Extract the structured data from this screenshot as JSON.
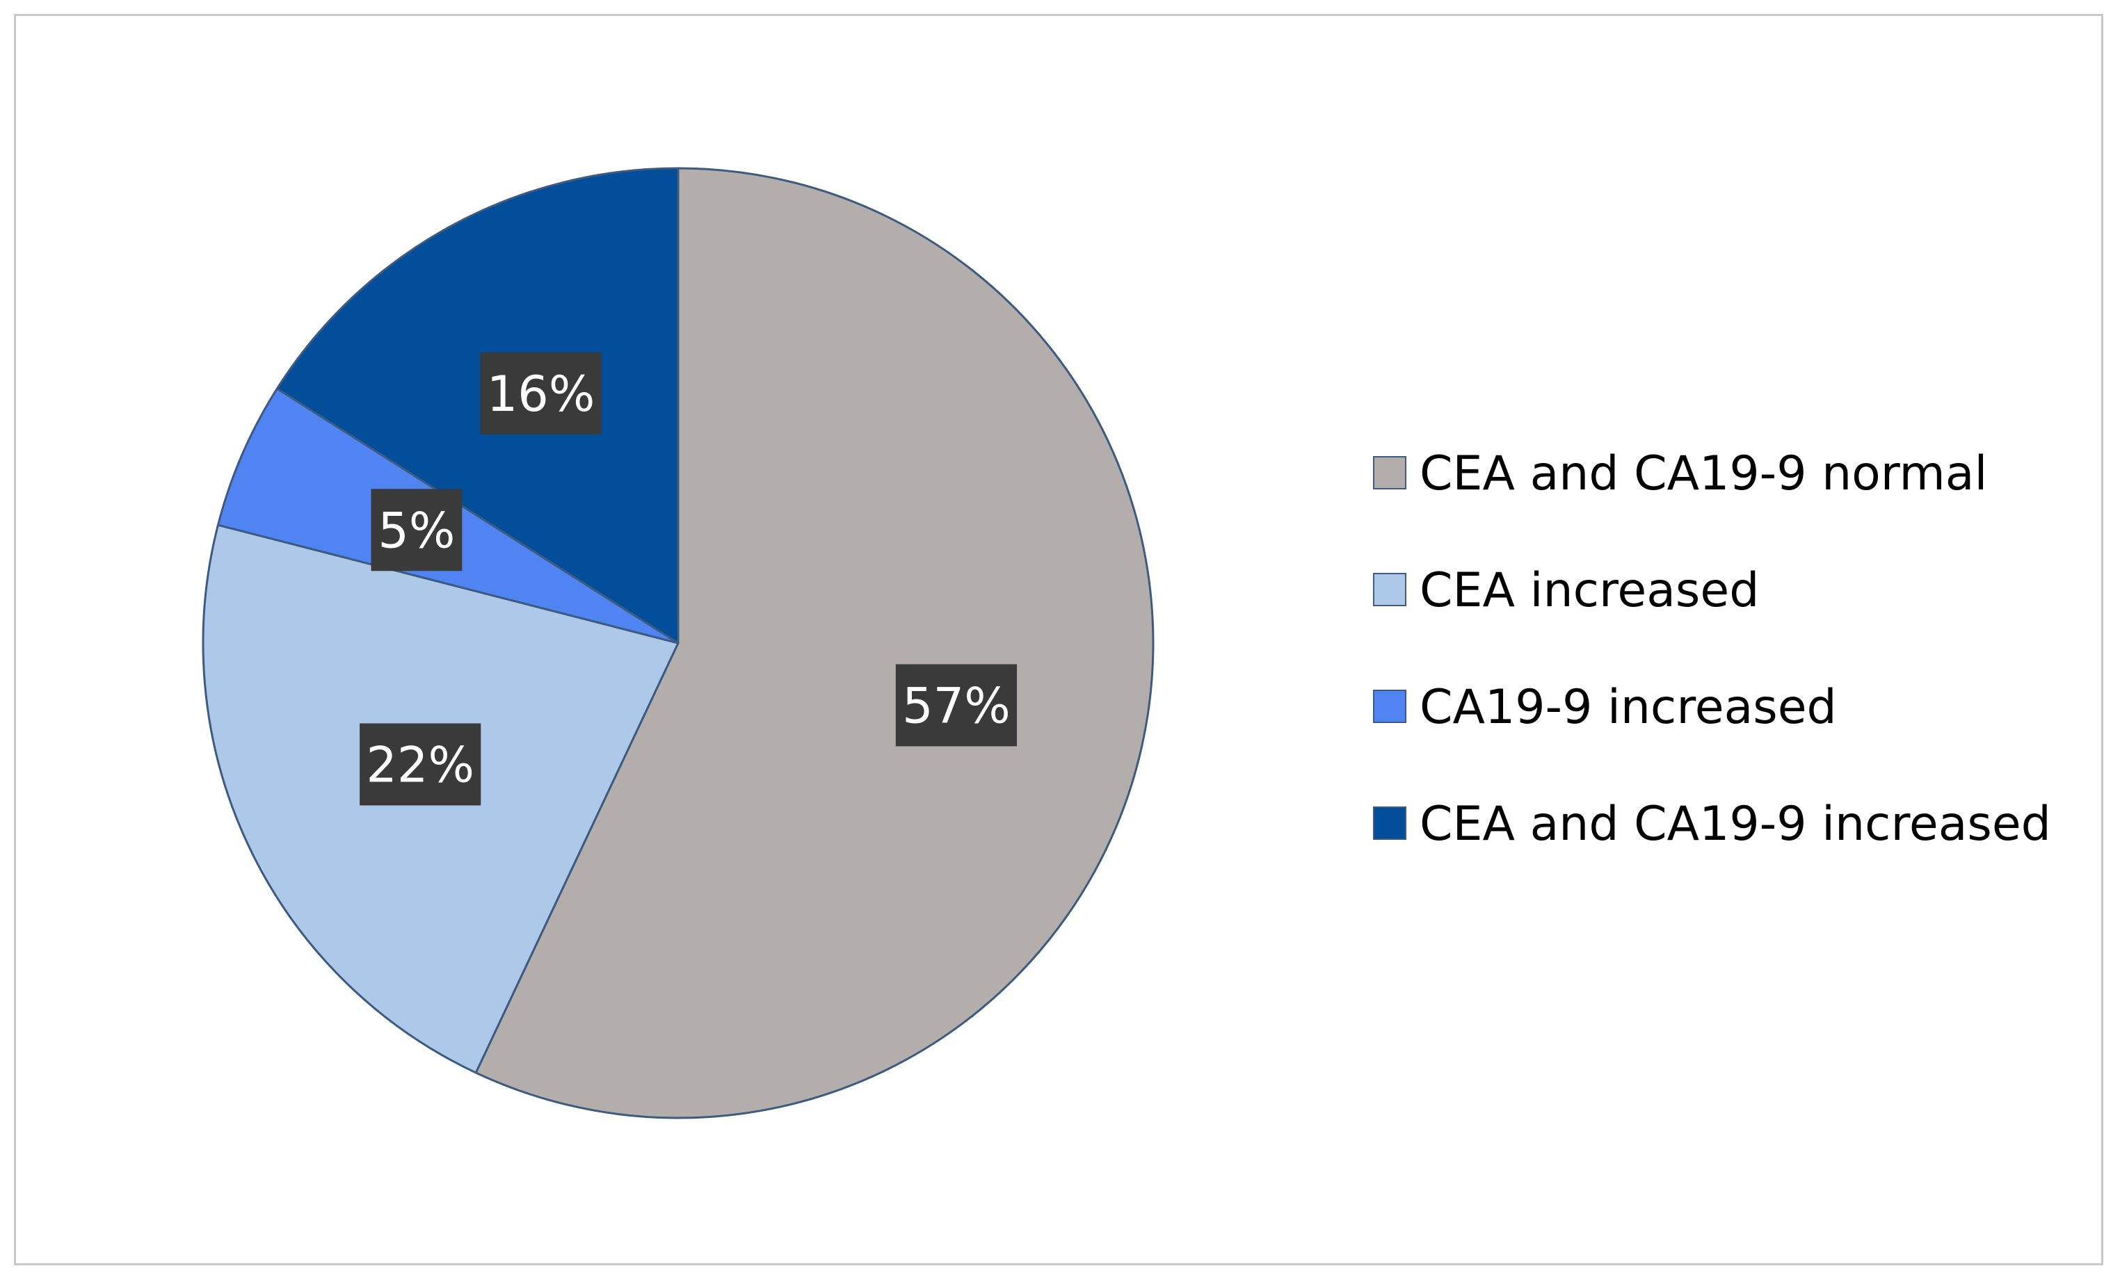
{
  "chart_data": {
    "type": "pie",
    "title": "",
    "start_angle_deg": 0,
    "direction": "clockwise",
    "slices": [
      {
        "label": "CEA and CA19-9 normal",
        "value": 57,
        "display": "57%",
        "color": "#b3aeac"
      },
      {
        "label": "CEA increased",
        "value": 22,
        "display": "22%",
        "color": "#adc8e9"
      },
      {
        "label": "CA19-9 increased",
        "value": 5,
        "display": "5%",
        "color": "#4f84f2"
      },
      {
        "label": "CEA and CA19-9 increased",
        "value": 16,
        "display": "16%",
        "color": "#024e9a"
      }
    ],
    "legend_position": "right",
    "slice_border_color": "#3d5a80",
    "label_background_color": "#3a3a3a"
  }
}
